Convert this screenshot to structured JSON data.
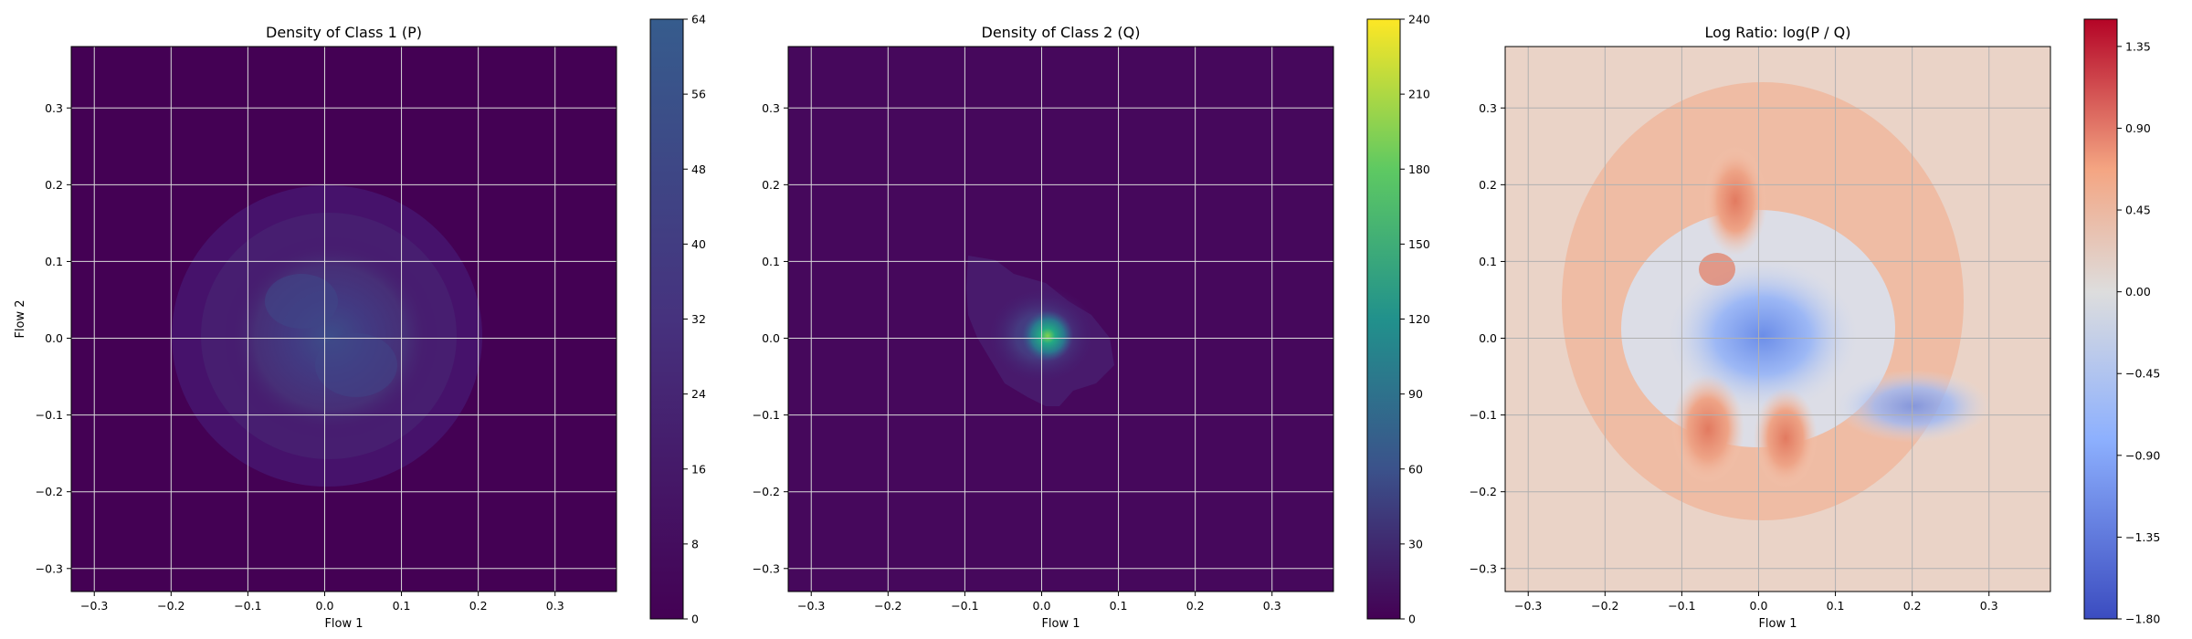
{
  "chart_data": [
    {
      "type": "heatmap",
      "title": "Density of Class 1 (P)",
      "xlabel": "Flow 1",
      "ylabel": "Flow 2",
      "xlim": [
        -0.33,
        0.38
      ],
      "ylim": [
        -0.33,
        0.38
      ],
      "xticks": [
        "−0.3",
        "−0.2",
        "−0.1",
        "0.0",
        "0.1",
        "0.2",
        "0.3"
      ],
      "yticks": [
        "−0.3",
        "−0.2",
        "−0.1",
        "0.0",
        "0.1",
        "0.2",
        "0.3"
      ],
      "grid": true,
      "colormap": "viridis",
      "colorbar": {
        "min": 0,
        "max": 64,
        "ticks": [
          "0",
          "8",
          "16",
          "24",
          "32",
          "40",
          "48",
          "56",
          "64"
        ]
      },
      "peak": {
        "x": 0.0,
        "y": 0.0,
        "value": 38
      }
    },
    {
      "type": "heatmap",
      "title": "Density of Class 2 (Q)",
      "xlabel": "Flow 1",
      "ylabel": "",
      "xlim": [
        -0.33,
        0.38
      ],
      "ylim": [
        -0.33,
        0.38
      ],
      "xticks": [
        "−0.3",
        "−0.2",
        "−0.1",
        "0.0",
        "0.1",
        "0.2",
        "0.3"
      ],
      "yticks": [
        "−0.3",
        "−0.2",
        "−0.1",
        "0.0",
        "0.1",
        "0.2",
        "0.3"
      ],
      "grid": true,
      "colormap": "viridis",
      "colorbar": {
        "min": 0,
        "max": 240,
        "ticks": [
          "0",
          "30",
          "60",
          "90",
          "120",
          "150",
          "180",
          "210",
          "240"
        ]
      },
      "peak": {
        "x": 0.01,
        "y": 0.0,
        "value": 175
      }
    },
    {
      "type": "heatmap",
      "title": "Log Ratio: log(P / Q)",
      "xlabel": "Flow 1",
      "ylabel": "",
      "xlim": [
        -0.33,
        0.38
      ],
      "ylim": [
        -0.33,
        0.38
      ],
      "xticks": [
        "−0.3",
        "−0.2",
        "−0.1",
        "0.0",
        "0.1",
        "0.2",
        "0.3"
      ],
      "yticks": [
        "−0.3",
        "−0.2",
        "−0.1",
        "0.0",
        "0.1",
        "0.2",
        "0.3"
      ],
      "grid": true,
      "colormap": "coolwarm",
      "colorbar": {
        "min": -1.8,
        "max": 1.5,
        "ticks": [
          "−1.80",
          "−1.35",
          "−0.90",
          "−0.45",
          "0.00",
          "0.45",
          "0.90",
          "1.35"
        ]
      }
    }
  ]
}
